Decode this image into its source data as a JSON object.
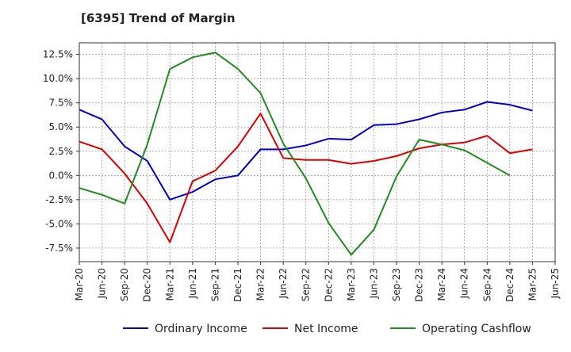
{
  "chart_data": {
    "type": "line",
    "title": "[6395]  Trend of Margin",
    "xlabel": "",
    "ylabel": "",
    "x_tick_labels": [
      "Mar-20",
      "Jun-20",
      "Sep-20",
      "Dec-20",
      "Mar-21",
      "Jun-21",
      "Sep-21",
      "Dec-21",
      "Mar-22",
      "Jun-22",
      "Sep-22",
      "Dec-22",
      "Mar-23",
      "Jun-23",
      "Sep-23",
      "Dec-23",
      "Mar-24",
      "Jun-24",
      "Sep-24",
      "Dec-24",
      "Mar-25",
      "Jun-25"
    ],
    "y_ticks": [
      -7.5,
      -5.0,
      -2.5,
      0.0,
      2.5,
      5.0,
      7.5,
      10.0,
      12.5
    ],
    "y_tick_labels": [
      "-7.5%",
      "-5.0%",
      "-2.5%",
      "0.0%",
      "2.5%",
      "5.0%",
      "7.5%",
      "10.0%",
      "12.5%"
    ],
    "ylim": [
      -8.9,
      13.7
    ],
    "grid": true,
    "legend_position": "bottom",
    "series": [
      {
        "name": "Ordinary Income",
        "color": "#0000cc",
        "values": [
          6.8,
          5.8,
          3.0,
          1.5,
          -2.5,
          -1.7,
          -0.4,
          0.0,
          2.7,
          2.7,
          3.1,
          3.8,
          3.7,
          5.2,
          5.3,
          5.8,
          6.5,
          6.8,
          7.6,
          7.3,
          6.7,
          null
        ]
      },
      {
        "name": "Net Income",
        "color": "#dd0000",
        "values": [
          3.5,
          2.7,
          0.2,
          -2.9,
          -6.9,
          -0.6,
          0.5,
          3.0,
          6.4,
          1.8,
          1.6,
          1.6,
          1.2,
          1.5,
          2.0,
          2.8,
          3.2,
          3.4,
          4.1,
          2.3,
          2.7,
          null
        ]
      },
      {
        "name": "Operating Cashflow",
        "color": "#228b22",
        "values": [
          -1.3,
          -2.0,
          -2.9,
          3.2,
          11.0,
          12.2,
          12.7,
          11.0,
          8.5,
          3.3,
          -0.3,
          -4.9,
          -8.2,
          -5.6,
          -0.1,
          3.7,
          3.2,
          2.6,
          1.3,
          0.0,
          null,
          null
        ]
      }
    ]
  }
}
